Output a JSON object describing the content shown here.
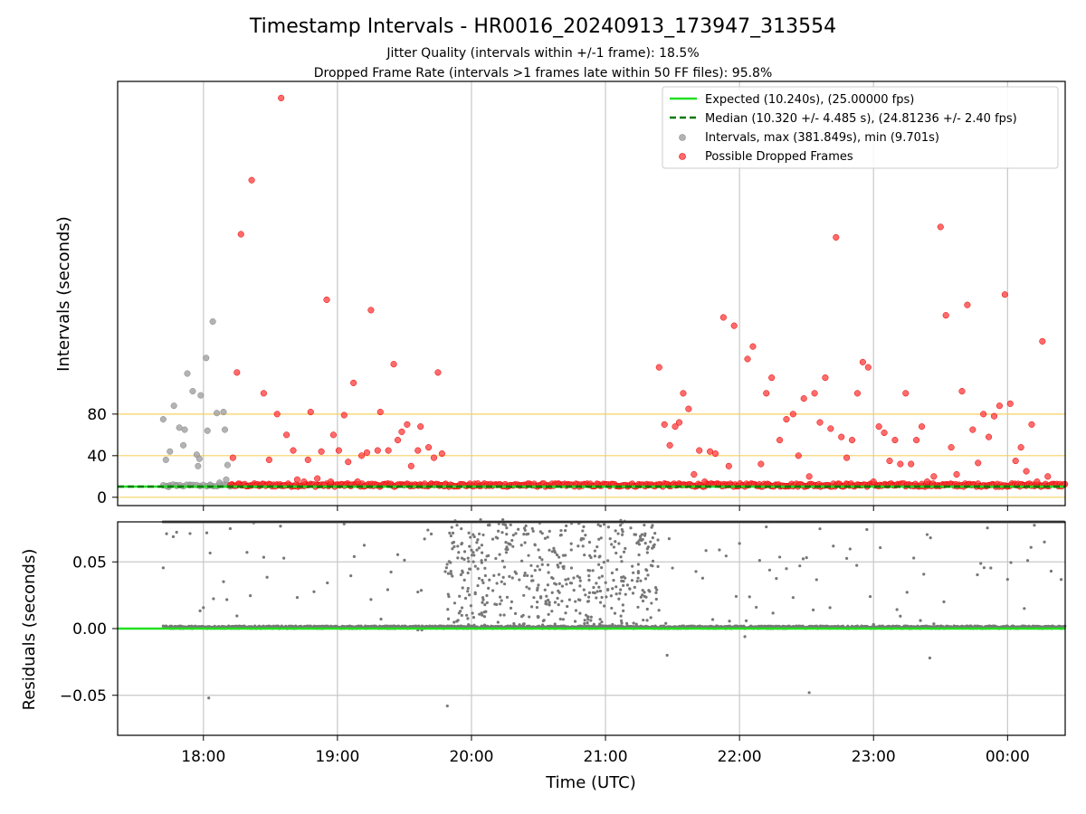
{
  "chart_data": {
    "type": "scatter",
    "title": "Timestamp Intervals - HR0016_20240913_173947_313554",
    "subtitles": [
      "Jitter Quality (intervals within +/-1 frame): 18.5%",
      "Dropped Frame Rate (intervals >1 frames late within 50 FF files): 95.8%"
    ],
    "xlabel": "Time (UTC)",
    "x_tick_labels": [
      "18:00",
      "19:00",
      "20:00",
      "21:00",
      "22:00",
      "23:00",
      "00:00"
    ],
    "top_panel": {
      "ylabel": "Intervals (seconds)",
      "y_ticks": [
        0,
        40,
        80
      ],
      "reference_lines": [
        0,
        40,
        80
      ],
      "expected_interval": 10.24,
      "median_interval": 10.32,
      "legend": [
        {
          "label": "Expected (10.240s), (25.00000 fps)",
          "style": "solid",
          "color": "#22e022"
        },
        {
          "label": "Median (10.320 +/- 4.485 s), (24.81236 +/- 2.40 fps)",
          "style": "dashed",
          "color": "#007a00"
        },
        {
          "label": "Intervals, max (381.849s), min (9.701s)",
          "style": "marker",
          "color": "#a0a0a0"
        },
        {
          "label": "Possible Dropped Frames",
          "style": "marker",
          "color": "#ff3a3a"
        }
      ],
      "series": [
        {
          "name": "Intervals, max (381.849s), min (9.701s)",
          "color": "#a0a0a0",
          "points": [
            [
              17.7,
              75
            ],
            [
              17.75,
              44
            ],
            [
              17.72,
              36
            ],
            [
              17.78,
              88
            ],
            [
              17.82,
              67
            ],
            [
              17.85,
              50
            ],
            [
              17.86,
              65
            ],
            [
              17.88,
              119
            ],
            [
              17.92,
              102
            ],
            [
              17.95,
              41
            ],
            [
              17.96,
              30
            ],
            [
              17.97,
              37
            ],
            [
              17.98,
              98
            ],
            [
              18.02,
              134
            ],
            [
              18.03,
              64
            ],
            [
              18.07,
              169
            ],
            [
              18.1,
              81
            ],
            [
              18.15,
              82
            ],
            [
              18.16,
              65
            ],
            [
              18.18,
              31
            ],
            [
              18.05,
              12
            ],
            [
              17.9,
              12
            ],
            [
              17.8,
              11
            ],
            [
              18.12,
              14
            ],
            [
              17.74,
              10
            ],
            [
              18.17,
              17
            ]
          ]
        },
        {
          "name": "Possible Dropped Frames",
          "color": "#ff3a3a",
          "points": [
            [
              18.22,
              38
            ],
            [
              18.25,
              120
            ],
            [
              18.28,
              253
            ],
            [
              18.36,
              305
            ],
            [
              18.45,
              100
            ],
            [
              18.49,
              36
            ],
            [
              18.55,
              80
            ],
            [
              18.58,
              384
            ],
            [
              18.62,
              60
            ],
            [
              18.67,
              45
            ],
            [
              18.7,
              17
            ],
            [
              18.75,
              15
            ],
            [
              18.78,
              36
            ],
            [
              18.8,
              82
            ],
            [
              18.85,
              18
            ],
            [
              18.88,
              44
            ],
            [
              18.92,
              190
            ],
            [
              18.95,
              15
            ],
            [
              18.97,
              60
            ],
            [
              19.01,
              45
            ],
            [
              19.05,
              79
            ],
            [
              19.08,
              34
            ],
            [
              19.12,
              110
            ],
            [
              19.15,
              15
            ],
            [
              19.18,
              40
            ],
            [
              19.22,
              43
            ],
            [
              19.25,
              180
            ],
            [
              19.3,
              45
            ],
            [
              19.32,
              82
            ],
            [
              19.38,
              45
            ],
            [
              19.42,
              128
            ],
            [
              19.45,
              55
            ],
            [
              19.48,
              63
            ],
            [
              19.52,
              70
            ],
            [
              19.55,
              30
            ],
            [
              19.6,
              45
            ],
            [
              19.62,
              68
            ],
            [
              19.68,
              48
            ],
            [
              19.72,
              38
            ],
            [
              19.75,
              120
            ],
            [
              19.78,
              42
            ],
            [
              19.8,
              12
            ],
            [
              19.65,
              13
            ],
            [
              19.45,
              12
            ],
            [
              19.1,
              12
            ],
            [
              18.9,
              12
            ],
            [
              18.6,
              11
            ],
            [
              21.4,
              125
            ],
            [
              21.44,
              70
            ],
            [
              21.48,
              50
            ],
            [
              21.52,
              68
            ],
            [
              21.55,
              72
            ],
            [
              21.58,
              100
            ],
            [
              21.62,
              85
            ],
            [
              21.66,
              22
            ],
            [
              21.7,
              45
            ],
            [
              21.74,
              15
            ],
            [
              21.78,
              44
            ],
            [
              21.82,
              42
            ],
            [
              21.88,
              173
            ],
            [
              21.92,
              30
            ],
            [
              21.96,
              165
            ],
            [
              22.06,
              133
            ],
            [
              22.1,
              145
            ],
            [
              22.16,
              32
            ],
            [
              22.2,
              100
            ],
            [
              22.24,
              115
            ],
            [
              22.3,
              55
            ],
            [
              22.35,
              75
            ],
            [
              22.4,
              80
            ],
            [
              22.44,
              40
            ],
            [
              22.48,
              95
            ],
            [
              22.52,
              20
            ],
            [
              22.56,
              100
            ],
            [
              22.6,
              72
            ],
            [
              22.64,
              115
            ],
            [
              22.68,
              66
            ],
            [
              22.72,
              250
            ],
            [
              22.76,
              58
            ],
            [
              22.8,
              38
            ],
            [
              22.84,
              55
            ],
            [
              22.88,
              100
            ],
            [
              22.92,
              130
            ],
            [
              22.96,
              125
            ],
            [
              23.0,
              15
            ],
            [
              23.04,
              68
            ],
            [
              23.08,
              62
            ],
            [
              23.12,
              35
            ],
            [
              23.16,
              55
            ],
            [
              23.2,
              32
            ],
            [
              23.24,
              100
            ],
            [
              23.28,
              32
            ],
            [
              23.32,
              55
            ],
            [
              23.36,
              68
            ],
            [
              23.4,
              15
            ],
            [
              23.45,
              20
            ],
            [
              23.5,
              260
            ],
            [
              23.54,
              175
            ],
            [
              23.58,
              48
            ],
            [
              23.62,
              22
            ],
            [
              23.66,
              102
            ],
            [
              23.7,
              185
            ],
            [
              23.74,
              65
            ],
            [
              23.78,
              33
            ],
            [
              23.82,
              80
            ],
            [
              23.86,
              58
            ],
            [
              23.9,
              78
            ],
            [
              23.94,
              88
            ],
            [
              23.98,
              195
            ],
            [
              24.02,
              90
            ],
            [
              24.06,
              35
            ],
            [
              24.1,
              48
            ],
            [
              24.14,
              25
            ],
            [
              24.18,
              70
            ],
            [
              24.22,
              15
            ],
            [
              24.26,
              150
            ],
            [
              24.3,
              20
            ]
          ]
        }
      ]
    },
    "bottom_panel": {
      "ylabel": "Residuals (seconds)",
      "y_ticks": [
        -0.05,
        0.0,
        0.05
      ],
      "y_tick_labels": [
        "−0.05",
        "0.00",
        "0.05"
      ],
      "ylim": [
        -0.08,
        0.08
      ],
      "zero_line_color": "#22e022",
      "marker_color": "#777777"
    }
  }
}
